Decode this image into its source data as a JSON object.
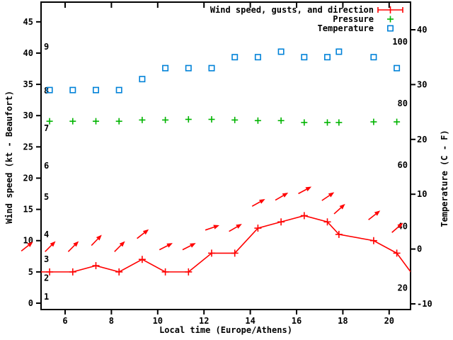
{
  "chart_data": {
    "type": "line",
    "title": "",
    "xlabel": "Local time (Europe/Athens)",
    "ylabel_left": "Wind speed (kt - Beaufort)",
    "ylabel_right": "Temperature (C - F)",
    "legend_position": "top-right-inside",
    "grid": false,
    "x_tick_hours": [
      6,
      8,
      10,
      12,
      14,
      16,
      18,
      20
    ],
    "x_range_hours": [
      4.96,
      20.92
    ],
    "left_axis_kt_ticks": [
      0,
      5,
      10,
      15,
      20,
      25,
      30,
      35,
      40,
      45
    ],
    "left_axis_range_kt": [
      -1,
      48
    ],
    "beaufort_scale_labels": [
      {
        "bf": "1",
        "kt": 1
      },
      {
        "bf": "2",
        "kt": 4
      },
      {
        "bf": "3",
        "kt": 7
      },
      {
        "bf": "4",
        "kt": 11
      },
      {
        "bf": "5",
        "kt": 17
      },
      {
        "bf": "6",
        "kt": 22
      },
      {
        "bf": "7",
        "kt": 28
      },
      {
        "bf": "8",
        "kt": 34
      },
      {
        "bf": "9",
        "kt": 41
      }
    ],
    "right_axis_c_ticks": [
      40,
      30,
      20,
      10,
      0,
      -10
    ],
    "fahrenheit_scale_labels": [
      100,
      80,
      60,
      40,
      20
    ],
    "legend": [
      {
        "label": "Wind speed, gusts, and direction",
        "marker": "errorbar",
        "color": "#ff0000"
      },
      {
        "label": "Pressure",
        "marker": "plus",
        "color": "#00b400"
      },
      {
        "label": "Temperature",
        "marker": "open-square",
        "color": "#0082d8"
      }
    ],
    "observations": {
      "hours_decimal": [
        5.33,
        6.33,
        7.33,
        8.33,
        9.33,
        10.33,
        11.33,
        12.33,
        13.33,
        14.33,
        15.33,
        16.33,
        17.33,
        17.83,
        19.33,
        20.33
      ],
      "wind_speed_kt": [
        5,
        5,
        6,
        5,
        7,
        5,
        5,
        8,
        8,
        12,
        13,
        14,
        13,
        11,
        10,
        8
      ],
      "wind_dir_arrow_deg_above_horizontal": [
        45,
        45,
        46,
        45,
        38,
        27,
        27,
        19,
        30,
        29,
        30,
        28,
        34,
        42,
        38,
        41
      ],
      "pressure_inhg_on_left_axis": [
        29.1,
        29.1,
        29.1,
        29.1,
        29.3,
        29.3,
        29.4,
        29.4,
        29.3,
        29.2,
        29.2,
        28.9,
        28.9,
        28.9,
        29.0,
        29.0
      ],
      "temperature_c": [
        29,
        29,
        29,
        29,
        31,
        33,
        33,
        33,
        35,
        35,
        36,
        35,
        35,
        36,
        35,
        33
      ]
    },
    "clipped_line_points": {
      "left": {
        "hour": 4.33,
        "kt": 5,
        "arrow_deg": 38
      },
      "right": {
        "hour": 21.33,
        "kt": 3
      }
    },
    "colors": {
      "wind": "#ff0000",
      "pressure": "#00b400",
      "temperature": "#0082d8",
      "axis": "#000000",
      "background": "#ffffff"
    }
  }
}
